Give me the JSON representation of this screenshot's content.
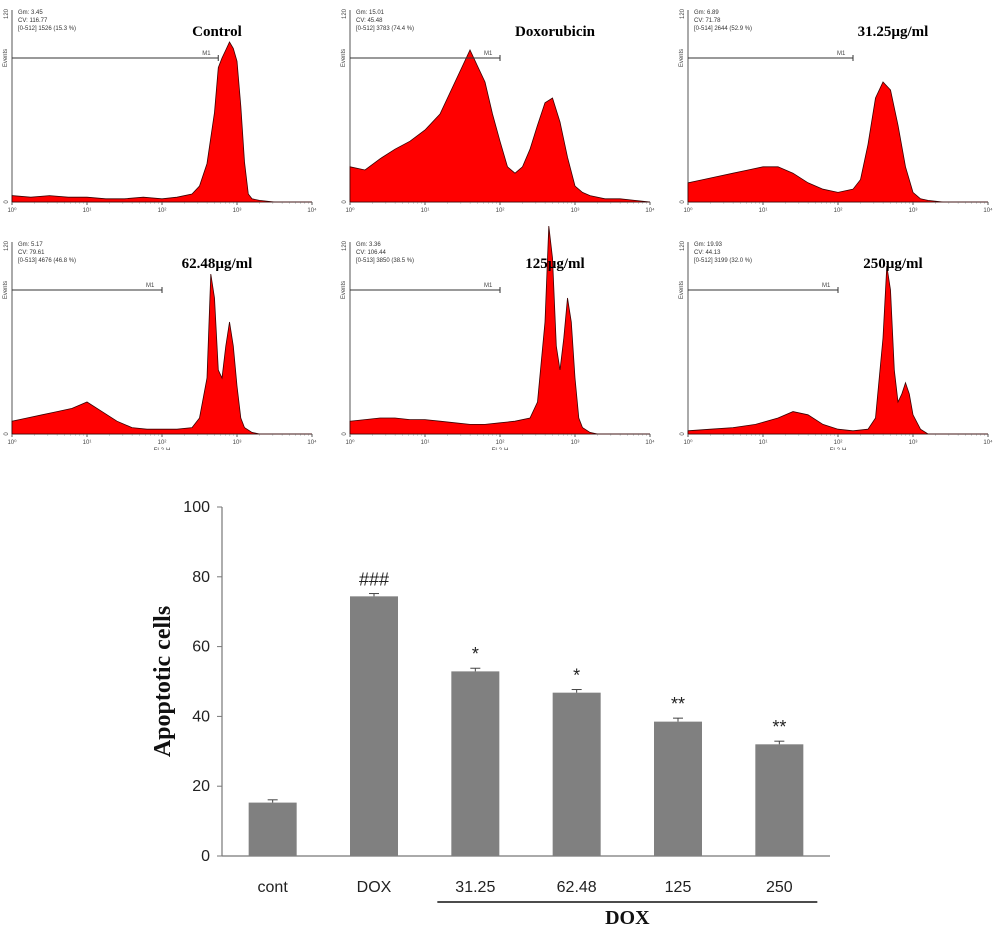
{
  "chart_data": [
    {
      "type": "area",
      "panel": "histogram",
      "title": "Control",
      "stats": [
        "Gm:   3.45",
        "CV:   116.77",
        "[0-512] 1526   (15.3 %)"
      ],
      "ylabel": "Events",
      "xlabel": "",
      "ytick_labels": [
        "0",
        "",
        "120"
      ],
      "xtick_labels": [
        "10⁰",
        "10¹",
        "10²",
        "10³",
        "10⁴"
      ],
      "gate_label": "M1",
      "gate_range": [
        0,
        2.75
      ],
      "x": [
        0,
        0.25,
        0.5,
        0.75,
        1,
        1.25,
        1.5,
        1.75,
        2,
        2.2,
        2.4,
        2.5,
        2.6,
        2.7,
        2.75,
        2.8,
        2.85,
        2.9,
        2.95,
        3,
        3.05,
        3.1,
        3.15,
        3.2,
        3.3,
        3.5,
        4
      ],
      "y": [
        4,
        3,
        4,
        3,
        3,
        2,
        2,
        3,
        2,
        3,
        5,
        10,
        24,
        56,
        84,
        90,
        95,
        100,
        96,
        88,
        60,
        25,
        5,
        2,
        1,
        0,
        0
      ]
    },
    {
      "type": "area",
      "panel": "histogram",
      "title": "Doxorubicin",
      "stats": [
        "Gm:   15.01",
        "CV:   45.48",
        "[0-512] 3783   (74.4 %)"
      ],
      "ylabel": "Events",
      "xlabel": "",
      "ytick_labels": [
        "0",
        "",
        "120"
      ],
      "xtick_labels": [
        "10⁰",
        "10¹",
        "10²",
        "10³",
        "10⁴"
      ],
      "gate_label": "M1",
      "gate_range": [
        0,
        2
      ],
      "x": [
        0,
        0.2,
        0.4,
        0.6,
        0.8,
        1,
        1.2,
        1.4,
        1.5,
        1.6,
        1.7,
        1.8,
        1.9,
        2,
        2.1,
        2.2,
        2.3,
        2.4,
        2.5,
        2.6,
        2.7,
        2.8,
        2.9,
        3,
        3.1,
        3.2,
        3.4,
        3.6,
        4
      ],
      "y": [
        22,
        20,
        27,
        33,
        38,
        45,
        55,
        75,
        85,
        95,
        85,
        75,
        55,
        38,
        22,
        18,
        22,
        33,
        48,
        62,
        65,
        50,
        28,
        10,
        6,
        4,
        2,
        2,
        0
      ]
    },
    {
      "type": "area",
      "panel": "histogram",
      "title": "31.25µg/ml",
      "stats": [
        "Gm:   6.89",
        "CV:   71.78",
        "[0-514] 2644   (52.9 %)"
      ],
      "ylabel": "Events",
      "xlabel": "",
      "ytick_labels": [
        "0",
        "",
        "120"
      ],
      "xtick_labels": [
        "10⁰",
        "10¹",
        "10²",
        "10³",
        "10⁴"
      ],
      "gate_label": "M1",
      "gate_range": [
        0,
        2.2
      ],
      "x": [
        0,
        0.2,
        0.4,
        0.6,
        0.8,
        1,
        1.2,
        1.4,
        1.6,
        1.8,
        2,
        2.2,
        2.3,
        2.4,
        2.5,
        2.6,
        2.7,
        2.8,
        2.9,
        3,
        3.1,
        3.2,
        3.4,
        4
      ],
      "y": [
        12,
        14,
        16,
        18,
        20,
        22,
        22,
        18,
        12,
        8,
        6,
        8,
        14,
        36,
        65,
        75,
        70,
        48,
        22,
        6,
        2,
        1,
        0,
        0
      ]
    },
    {
      "type": "area",
      "panel": "histogram",
      "title": "62.48µg/ml",
      "stats": [
        "Gm:   5.17",
        "CV:   79.61",
        "[0-513] 4676   (46.8 %)"
      ],
      "ylabel": "Events",
      "xlabel": "FL2-H",
      "ytick_labels": [
        "0",
        "",
        "120"
      ],
      "xtick_labels": [
        "10⁰",
        "10¹",
        "10²",
        "10³",
        "10⁴"
      ],
      "gate_label": "M1",
      "gate_range": [
        0,
        2
      ],
      "x": [
        0,
        0.2,
        0.4,
        0.6,
        0.8,
        1,
        1.2,
        1.4,
        1.6,
        1.8,
        2,
        2.2,
        2.4,
        2.5,
        2.6,
        2.65,
        2.7,
        2.75,
        2.8,
        2.85,
        2.9,
        2.95,
        3,
        3.05,
        3.1,
        3.2,
        3.3,
        4
      ],
      "y": [
        8,
        10,
        12,
        14,
        16,
        20,
        14,
        8,
        4,
        3,
        3,
        3,
        4,
        10,
        35,
        100,
        85,
        40,
        35,
        55,
        70,
        55,
        30,
        10,
        4,
        1,
        0,
        0
      ]
    },
    {
      "type": "area",
      "panel": "histogram",
      "title": "125µg/ml",
      "stats": [
        "Gm:   3.36",
        "CV:   106.44",
        "[0-513] 3850   (38.5 %)"
      ],
      "ylabel": "Events",
      "xlabel": "FL2-H",
      "ytick_labels": [
        "0",
        "",
        "120"
      ],
      "xtick_labels": [
        "10⁰",
        "10¹",
        "10²",
        "10³",
        "10⁴"
      ],
      "gate_label": "M1",
      "gate_range": [
        0,
        2
      ],
      "x": [
        0,
        0.2,
        0.4,
        0.6,
        0.8,
        1,
        1.2,
        1.4,
        1.6,
        1.8,
        2,
        2.2,
        2.4,
        2.5,
        2.6,
        2.65,
        2.7,
        2.75,
        2.8,
        2.85,
        2.9,
        2.95,
        3,
        3.05,
        3.1,
        3.2,
        3.3,
        4
      ],
      "y": [
        8,
        9,
        10,
        10,
        9,
        9,
        8,
        7,
        6,
        6,
        7,
        8,
        10,
        20,
        70,
        130,
        110,
        55,
        40,
        60,
        85,
        70,
        35,
        10,
        4,
        1,
        0,
        0
      ]
    },
    {
      "type": "area",
      "panel": "histogram",
      "title": "250µg/ml",
      "stats": [
        "Gm:   19.93",
        "CV:   44.13",
        "[0-512] 3199   (32.0 %)"
      ],
      "ylabel": "Events",
      "xlabel": "FL2-H",
      "ytick_labels": [
        "0",
        "",
        "120"
      ],
      "xtick_labels": [
        "10⁰",
        "10¹",
        "10²",
        "10³",
        "10⁴"
      ],
      "gate_label": "M1",
      "gate_range": [
        0,
        2
      ],
      "x": [
        0,
        0.3,
        0.6,
        0.9,
        1.2,
        1.4,
        1.6,
        1.8,
        2,
        2.2,
        2.4,
        2.5,
        2.6,
        2.65,
        2.7,
        2.75,
        2.8,
        2.85,
        2.9,
        2.95,
        3,
        3.1,
        3.2,
        4
      ],
      "y": [
        2,
        3,
        4,
        6,
        10,
        14,
        12,
        6,
        3,
        2,
        3,
        10,
        60,
        105,
        90,
        40,
        20,
        25,
        32,
        25,
        12,
        3,
        0,
        0
      ]
    },
    {
      "type": "bar",
      "title": "",
      "ylabel": "Apoptotic cells",
      "xlabel": "",
      "group_label": "DOX",
      "categories": [
        "cont",
        "DOX",
        "31.25",
        "62.48",
        "125",
        "250"
      ],
      "values": [
        15.3,
        74.4,
        52.9,
        46.8,
        38.5,
        32.0
      ],
      "errors": [
        0.8,
        0.8,
        0.9,
        0.9,
        1.0,
        0.9
      ],
      "annotations": [
        "",
        "###",
        "*",
        "*",
        "**",
        "**"
      ],
      "ylim": [
        0,
        100
      ],
      "yticks": [
        0,
        20,
        40,
        60,
        80,
        100
      ],
      "bar_color": "#808080",
      "grid": false
    }
  ],
  "colors": {
    "histogram_fill": "#ff0000",
    "histogram_edge": "#3a0000",
    "bar": "#808080"
  }
}
